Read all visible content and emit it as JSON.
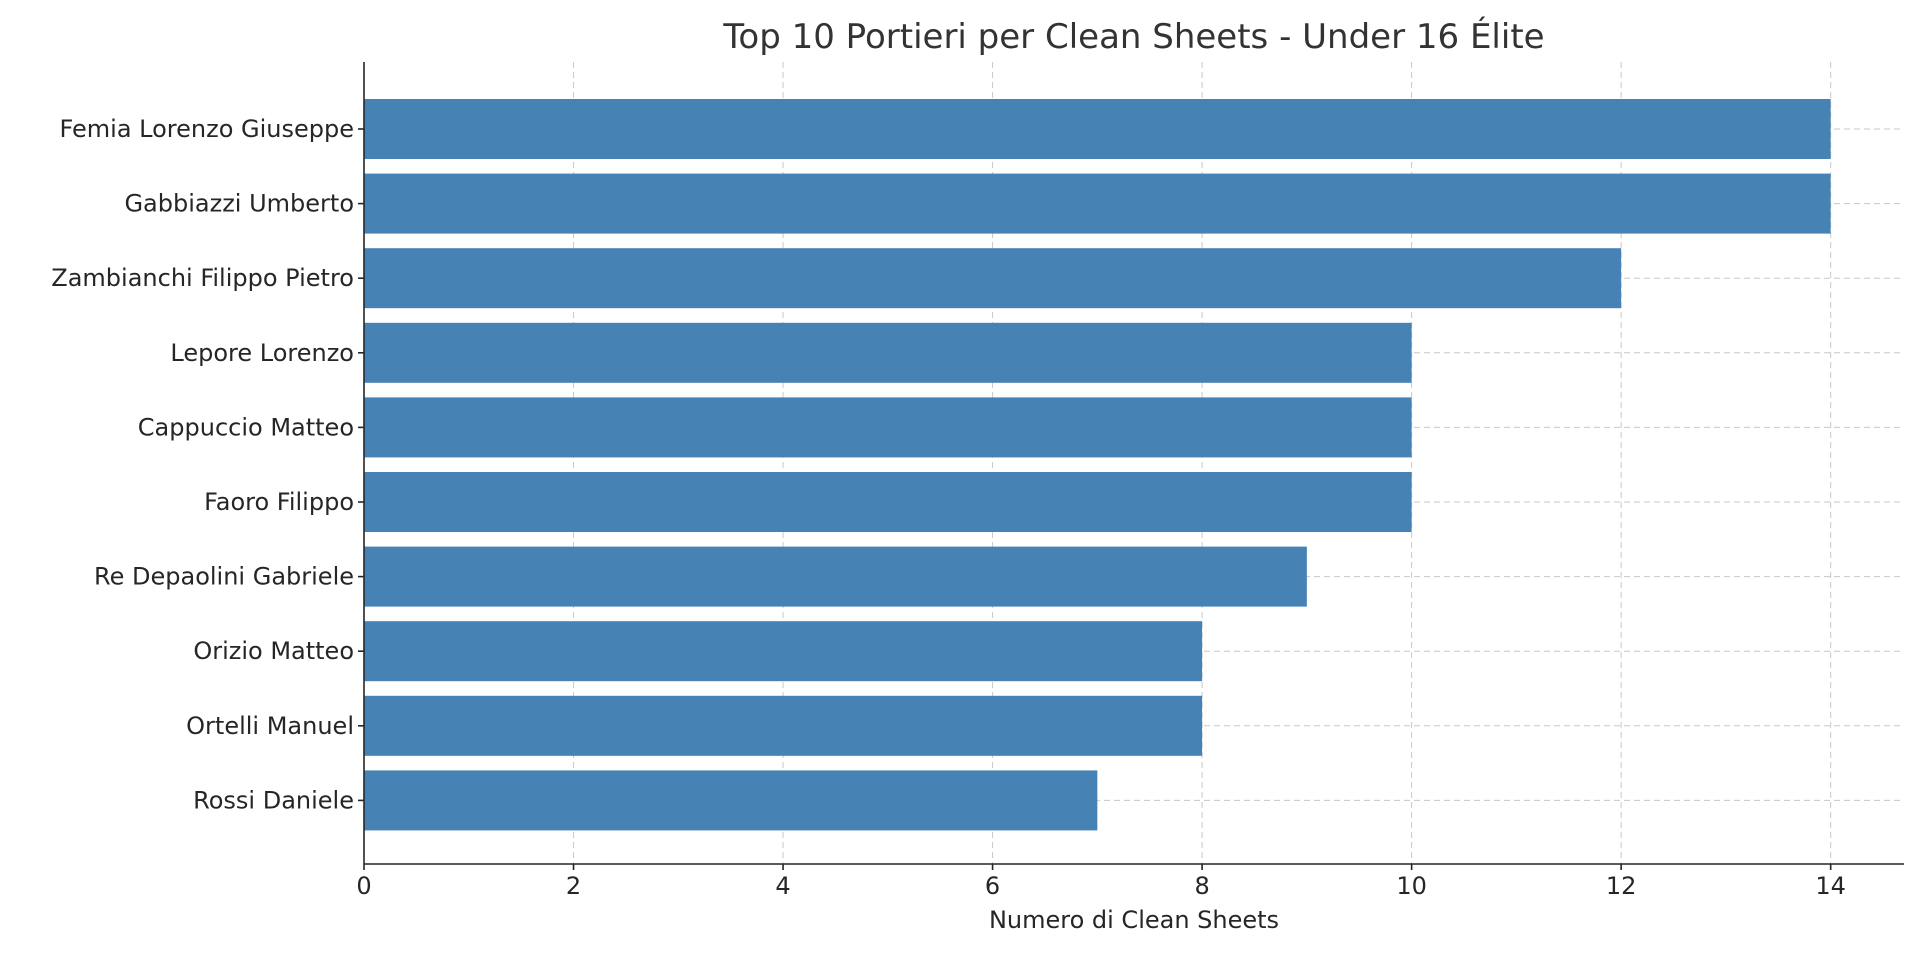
{
  "chart_data": {
    "type": "bar",
    "orientation": "horizontal",
    "title": "Top 10 Portieri per Clean Sheets - Under 16 Élite",
    "xlabel": "Numero di Clean Sheets",
    "ylabel": "",
    "xlim": [
      0,
      14.7
    ],
    "x_ticks": [
      0,
      2,
      4,
      6,
      8,
      10,
      12,
      14
    ],
    "x_tick_labels": [
      "0",
      "2",
      "4",
      "6",
      "8",
      "10",
      "12",
      "14"
    ],
    "grid": true,
    "categories": [
      "Femia Lorenzo Giuseppe",
      "Gabbiazzi Umberto",
      "Zambianchi Filippo Pietro",
      "Lepore Lorenzo",
      "Cappuccio Matteo",
      "Faoro Filippo",
      "Re Depaolini Gabriele",
      "Orizio Matteo",
      "Ortelli Manuel",
      "Rossi Daniele"
    ],
    "values": [
      14,
      14,
      12,
      10,
      10,
      10,
      9,
      8,
      8,
      7
    ],
    "bar_color": "#4682b4"
  }
}
